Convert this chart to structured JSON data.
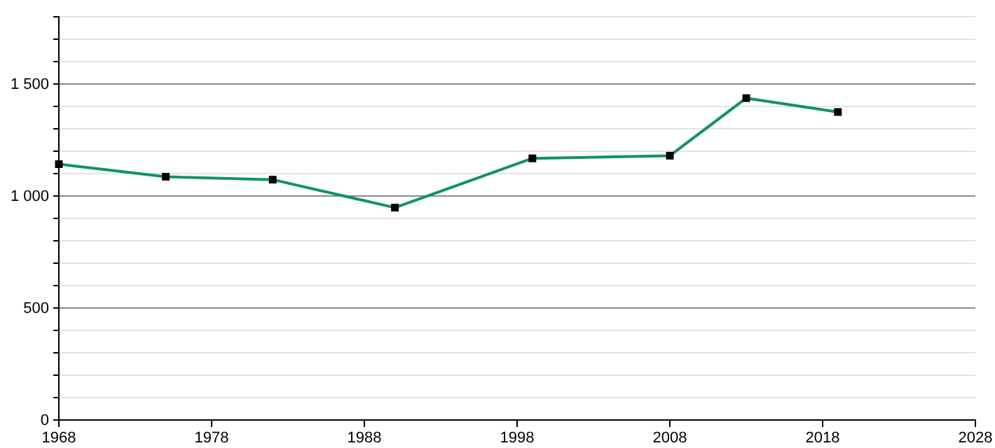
{
  "chart_data": {
    "type": "line",
    "x": [
      1968,
      1975,
      1982,
      1990,
      1999,
      2008,
      2013,
      2019
    ],
    "series": [
      {
        "color": "#13906f",
        "values": [
          1142,
          1086,
          1073,
          948,
          1168,
          1180,
          1437,
          1375
        ]
      }
    ],
    "xlim": [
      1968,
      2028
    ],
    "xticks": [
      1968,
      1978,
      1988,
      1998,
      2008,
      2018,
      2028
    ],
    "ylim": [
      0,
      1800
    ],
    "yticks": [
      0,
      {
        "value": 100,
        "label": null
      },
      {
        "value": 200,
        "label": null
      },
      {
        "value": 300,
        "label": null
      },
      {
        "value": 400,
        "label": null
      },
      500,
      {
        "value": 600,
        "label": null
      },
      {
        "value": 700,
        "label": null
      },
      {
        "value": 800,
        "label": null
      },
      {
        "value": 900,
        "label": null
      },
      {
        "value": 1000,
        "label": "1 000"
      },
      {
        "value": 1100,
        "label": null
      },
      {
        "value": 1200,
        "label": null
      },
      {
        "value": 1300,
        "label": null
      },
      {
        "value": 1400,
        "label": null
      },
      {
        "value": 1500,
        "label": "1 500"
      },
      {
        "value": 1600,
        "label": null
      },
      {
        "value": 1700,
        "label": null
      },
      {
        "value": 1800,
        "label": null
      }
    ],
    "grid": "y",
    "marker": "square",
    "line_style": "solid"
  }
}
